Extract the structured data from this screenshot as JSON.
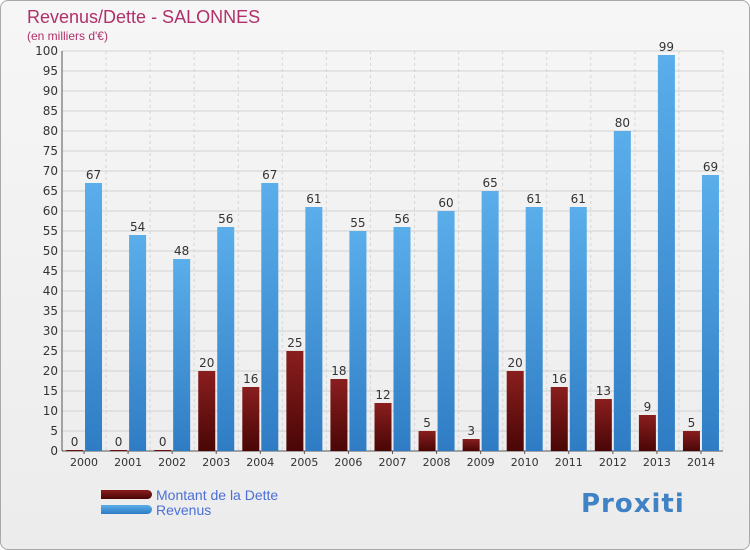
{
  "chart_data": {
    "type": "bar",
    "title": "Revenus/Dette - SALONNES",
    "subtitle": "(en milliers d'€)",
    "categories": [
      "2000",
      "2001",
      "2002",
      "2003",
      "2004",
      "2005",
      "2006",
      "2007",
      "2008",
      "2009",
      "2010",
      "2011",
      "2012",
      "2013",
      "2014"
    ],
    "series": [
      {
        "name": "Montant de la Dette",
        "color": "#6b0d0d",
        "values": [
          0,
          0,
          0,
          20,
          16,
          25,
          18,
          12,
          5,
          3,
          20,
          16,
          13,
          9,
          5
        ]
      },
      {
        "name": "Revenus",
        "color": "#3d93dc",
        "values": [
          67,
          54,
          48,
          56,
          67,
          61,
          55,
          56,
          60,
          65,
          61,
          61,
          80,
          99,
          69
        ]
      }
    ],
    "ylim": [
      0,
      100
    ],
    "ytick_step": 5,
    "grid": true,
    "legend": "bottom-left"
  },
  "logo": {
    "text": "Proxiti"
  }
}
